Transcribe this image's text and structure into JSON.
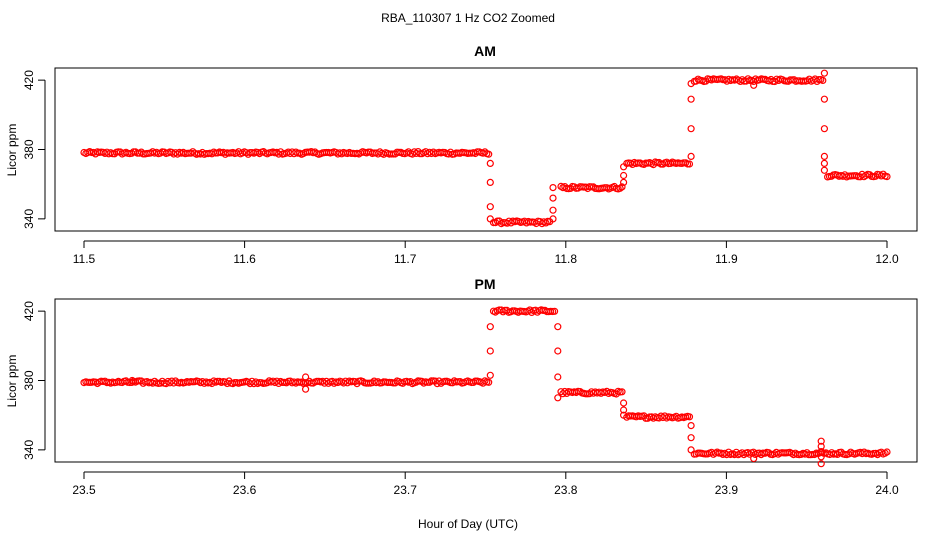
{
  "title": "RBA_110307  1 Hz CO2 Zoomed",
  "xlabel": "Hour of Day (UTC)",
  "colors": {
    "points": "#ff0000",
    "axes": "#000000"
  },
  "chart_data": [
    {
      "type": "scatter",
      "title": "AM",
      "xlabel": "",
      "ylabel": "Licor ppm",
      "xlim": [
        11.5,
        12.0
      ],
      "ylim": [
        333,
        427
      ],
      "xticks": [
        "11.5",
        "11.6",
        "11.7",
        "11.8",
        "11.9",
        "12.0"
      ],
      "yticks": [
        "340",
        "380",
        "420"
      ],
      "marker": "open-circle",
      "segments": [
        {
          "x_start": 11.5,
          "x_end": 11.752,
          "y": 378
        },
        {
          "x_start": 11.755,
          "x_end": 11.79,
          "y": 338
        },
        {
          "x_start": 11.797,
          "x_end": 11.835,
          "y": 358
        },
        {
          "x_start": 11.838,
          "x_end": 11.877,
          "y": 372
        },
        {
          "x_start": 11.88,
          "x_end": 11.96,
          "y": 420
        },
        {
          "x_start": 11.963,
          "x_end": 12.0,
          "y": 365
        }
      ],
      "transitions": [
        {
          "x": 11.753,
          "y": [
            372,
            361,
            347,
            340
          ]
        },
        {
          "x": 11.792,
          "y": [
            340,
            345,
            352,
            358
          ]
        },
        {
          "x": 11.836,
          "y": [
            361,
            365,
            370
          ]
        },
        {
          "x": 11.878,
          "y": [
            376,
            392,
            409,
            418
          ]
        },
        {
          "x": 11.961,
          "y": [
            424,
            409,
            392,
            376,
            372,
            368
          ]
        }
      ],
      "outliers": [
        {
          "x": 11.917,
          "y": 417
        }
      ]
    },
    {
      "type": "scatter",
      "title": "PM",
      "xlabel": "",
      "ylabel": "Licor ppm",
      "xlim": [
        23.5,
        24.0
      ],
      "ylim": [
        333,
        427
      ],
      "xticks": [
        "23.5",
        "23.6",
        "23.7",
        "23.8",
        "23.9",
        "24.0"
      ],
      "yticks": [
        "340",
        "380",
        "420"
      ],
      "marker": "open-circle",
      "segments": [
        {
          "x_start": 23.5,
          "x_end": 23.752,
          "y": 379
        },
        {
          "x_start": 23.755,
          "x_end": 23.793,
          "y": 420
        },
        {
          "x_start": 23.797,
          "x_end": 23.835,
          "y": 373
        },
        {
          "x_start": 23.838,
          "x_end": 23.877,
          "y": 359
        },
        {
          "x_start": 23.88,
          "x_end": 24.0,
          "y": 338
        }
      ],
      "transitions": [
        {
          "x": 23.753,
          "y": [
            383,
            397,
            411
          ]
        },
        {
          "x": 23.795,
          "y": [
            411,
            397,
            382,
            370
          ]
        },
        {
          "x": 23.836,
          "y": [
            367,
            363,
            360
          ]
        },
        {
          "x": 23.878,
          "y": [
            354,
            347,
            340
          ]
        },
        {
          "x": 23.959,
          "y": [
            342,
            345,
            339,
            336,
            332
          ]
        }
      ],
      "outliers": [
        {
          "x": 23.638,
          "y": 382
        },
        {
          "x": 23.638,
          "y": 375
        },
        {
          "x": 23.53,
          "y": 380
        },
        {
          "x": 23.917,
          "y": 335
        }
      ]
    }
  ]
}
